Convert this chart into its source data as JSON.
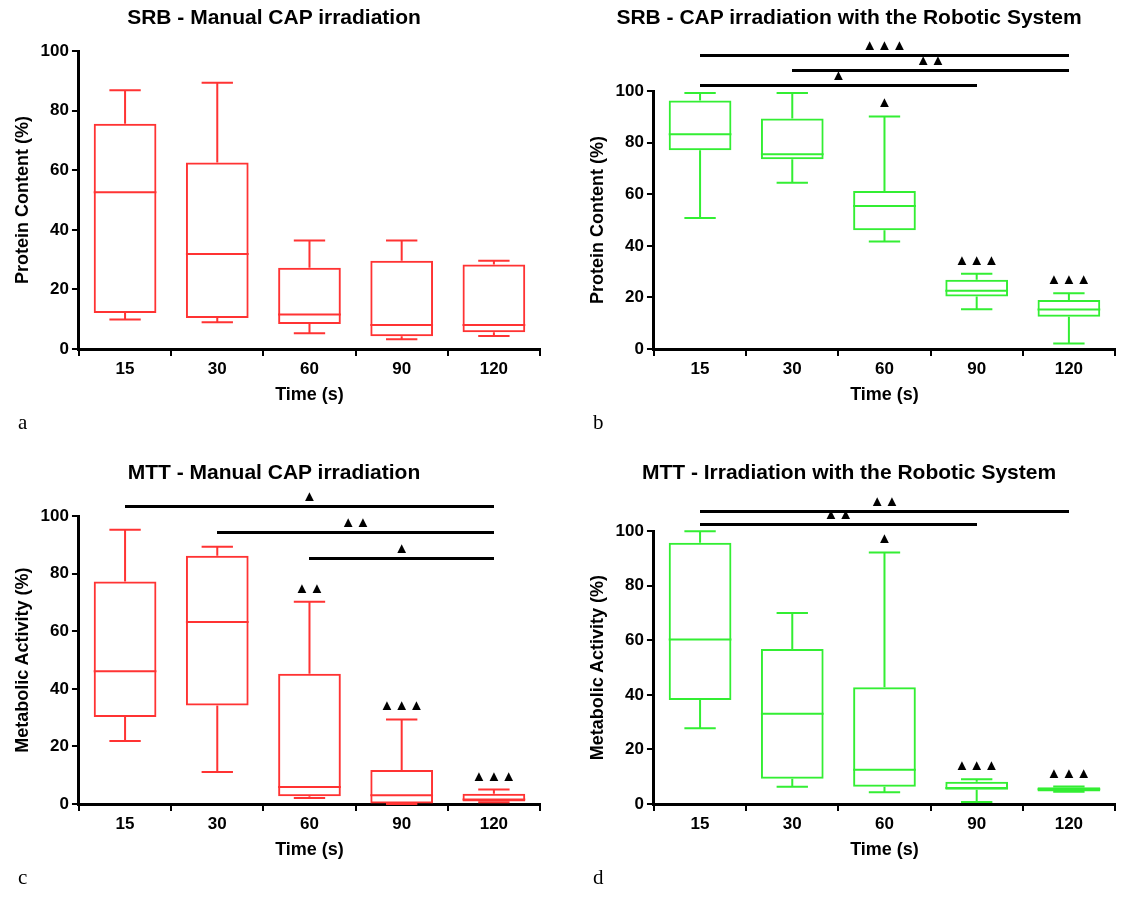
{
  "chart_data": [
    {
      "type": "box",
      "title": "SRB - Manual CAP irradiation",
      "xlabel": "Time (s)",
      "ylabel": "Protein Content (%)",
      "categories": [
        "15",
        "30",
        "60",
        "90",
        "120"
      ],
      "series": [
        {
          "color": "#ff3333",
          "boxes": [
            {
              "low": 9.9,
              "q1": 12.1,
              "median": 52.6,
              "q3": 75.6,
              "high": 86.9
            },
            {
              "low": 9,
              "q1": 10.4,
              "median": 31.9,
              "q3": 62.6,
              "high": 89.4
            },
            {
              "low": 5.3,
              "q1": 8.4,
              "median": 11.6,
              "q3": 27.3,
              "high": 36.4
            },
            {
              "low": 3.3,
              "q1": 4.3,
              "median": 8.1,
              "q3": 29.6,
              "high": 36.4
            },
            {
              "low": 4.4,
              "q1": 5.6,
              "median": 8.1,
              "q3": 28.4,
              "high": 29.6
            }
          ]
        }
      ],
      "ylim": [
        0,
        100
      ],
      "yticks": [
        0,
        20,
        40,
        60,
        80,
        100
      ],
      "grid": false,
      "legend": false,
      "annotations": [
        "a"
      ]
    },
    {
      "type": "box",
      "title": "SRB - CAP irradiation with the Robotic System",
      "xlabel": "Time (s)",
      "ylabel": "Protein Content (%)",
      "categories": [
        "15",
        "30",
        "60",
        "90",
        "120"
      ],
      "series": [
        {
          "color": "#33ee33",
          "boxes": [
            {
              "low": 50.8,
              "q1": 77.1,
              "median": 83.3,
              "q3": 96.4,
              "high": 99.3
            },
            {
              "low": 64.5,
              "q1": 73.6,
              "median": 75.5,
              "q3": 89.4,
              "high": 99.3
            },
            {
              "low": 41.7,
              "q1": 46.1,
              "median": 55.5,
              "q3": 61.3,
              "high": 90.2
            },
            {
              "low": 15.4,
              "q1": 20.4,
              "median": 22.6,
              "q3": 26.9,
              "high": 29.2
            },
            {
              "low": 2.1,
              "q1": 12.5,
              "median": 15.3,
              "q3": 19,
              "high": 21.6
            }
          ]
        }
      ],
      "ylim": [
        0,
        100
      ],
      "yticks": [
        0,
        20,
        40,
        60,
        80,
        100
      ],
      "grid": false,
      "legend": false,
      "annotations": [
        "b",
        "▲▲▲",
        "▲▲",
        "▲",
        "▲",
        "▲▲▲",
        "▲▲▲"
      ]
    },
    {
      "type": "box",
      "title": "MTT - Manual CAP irradiation",
      "xlabel": "Time (s)",
      "ylabel": "Metabolic Activity (%)",
      "categories": [
        "15",
        "30",
        "60",
        "90",
        "120"
      ],
      "series": [
        {
          "color": "#ff3333",
          "boxes": [
            {
              "low": 21.9,
              "q1": 30.2,
              "median": 46.1,
              "q3": 77.3,
              "high": 95.3
            },
            {
              "low": 11.1,
              "q1": 34.2,
              "median": 63.2,
              "q3": 86.3,
              "high": 89.4
            },
            {
              "low": 2.1,
              "q1": 2.7,
              "median": 5.9,
              "q3": 45.3,
              "high": 70.3
            },
            {
              "low": 0,
              "q1": 0.2,
              "median": 3,
              "q3": 11.8,
              "high": 29.4
            },
            {
              "low": 0.6,
              "q1": 0.9,
              "median": 1.6,
              "q3": 3.6,
              "high": 5
            }
          ]
        }
      ],
      "ylim": [
        0,
        100
      ],
      "yticks": [
        0,
        20,
        40,
        60,
        80,
        100
      ],
      "grid": false,
      "legend": false,
      "annotations": [
        "c",
        "▲",
        "▲▲",
        "▲",
        "▲▲",
        "▲▲▲",
        "▲▲▲"
      ]
    },
    {
      "type": "box",
      "title": "MTT - Irradiation with the Robotic System",
      "xlabel": "Time (s)",
      "ylabel": "Metabolic Activity (%)",
      "categories": [
        "15",
        "30",
        "60",
        "90",
        "120"
      ],
      "series": [
        {
          "color": "#33ee33",
          "boxes": [
            {
              "low": 27.8,
              "q1": 38.1,
              "median": 60.3,
              "q3": 95.8,
              "high": 100
            },
            {
              "low": 6.3,
              "q1": 9.3,
              "median": 33.1,
              "q3": 56.8,
              "high": 70
            },
            {
              "low": 4.3,
              "q1": 6.3,
              "median": 12.6,
              "q3": 42.8,
              "high": 92.2
            },
            {
              "low": 0.7,
              "q1": 5.2,
              "median": 5.9,
              "q3": 8.2,
              "high": 9.1
            },
            {
              "low": 4.5,
              "q1": 4.6,
              "median": 5.4,
              "q3": 6.1,
              "high": 6.4
            }
          ]
        }
      ],
      "ylim": [
        0,
        100
      ],
      "yticks": [
        0,
        20,
        40,
        60,
        80,
        100
      ],
      "grid": false,
      "legend": false,
      "annotations": [
        "d",
        "▲▲",
        "▲▲",
        "▲",
        "▲▲▲",
        "▲▲▲"
      ]
    }
  ]
}
